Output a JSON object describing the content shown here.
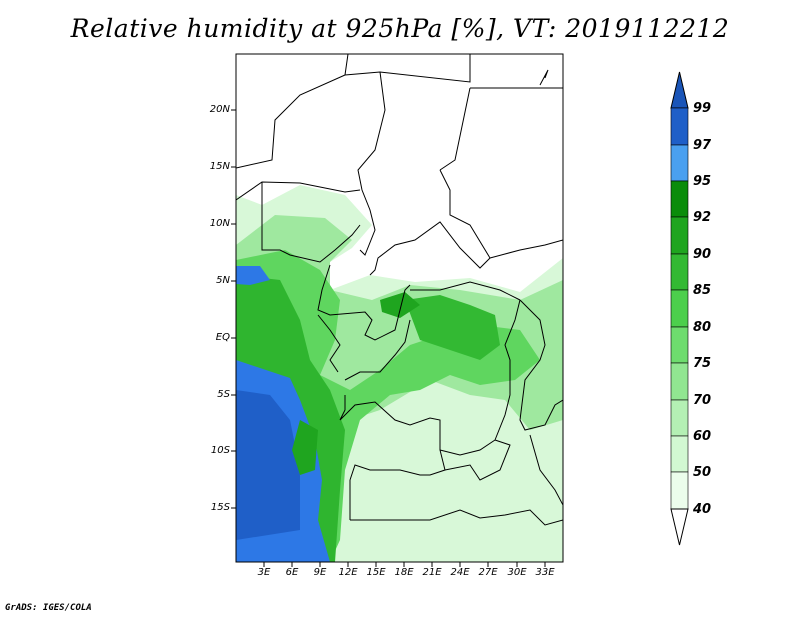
{
  "title": "Relative humidity at 925hPa [%], VT: 2019112212",
  "credit": "GrADS: IGES/COLA",
  "lat_labels": [
    "20N",
    "15N",
    "10N",
    "5N",
    "EQ",
    "5S",
    "10S",
    "15S"
  ],
  "lon_labels": [
    "3E",
    "6E",
    "9E",
    "12E",
    "15E",
    "18E",
    "21E",
    "24E",
    "27E",
    "30E",
    "33E"
  ],
  "colorbar": {
    "levels": [
      "99",
      "97",
      "95",
      "92",
      "90",
      "85",
      "80",
      "75",
      "70",
      "60",
      "50",
      "40"
    ],
    "colors": [
      "#1f5fc8",
      "#2d78e6",
      "#4aa0f0",
      "#0a8c0a",
      "#1fa51f",
      "#33b933",
      "#4ccf4c",
      "#6edc6e",
      "#91e691",
      "#b4f0b4",
      "#d2f8d2",
      "#ecfdec"
    ]
  }
}
